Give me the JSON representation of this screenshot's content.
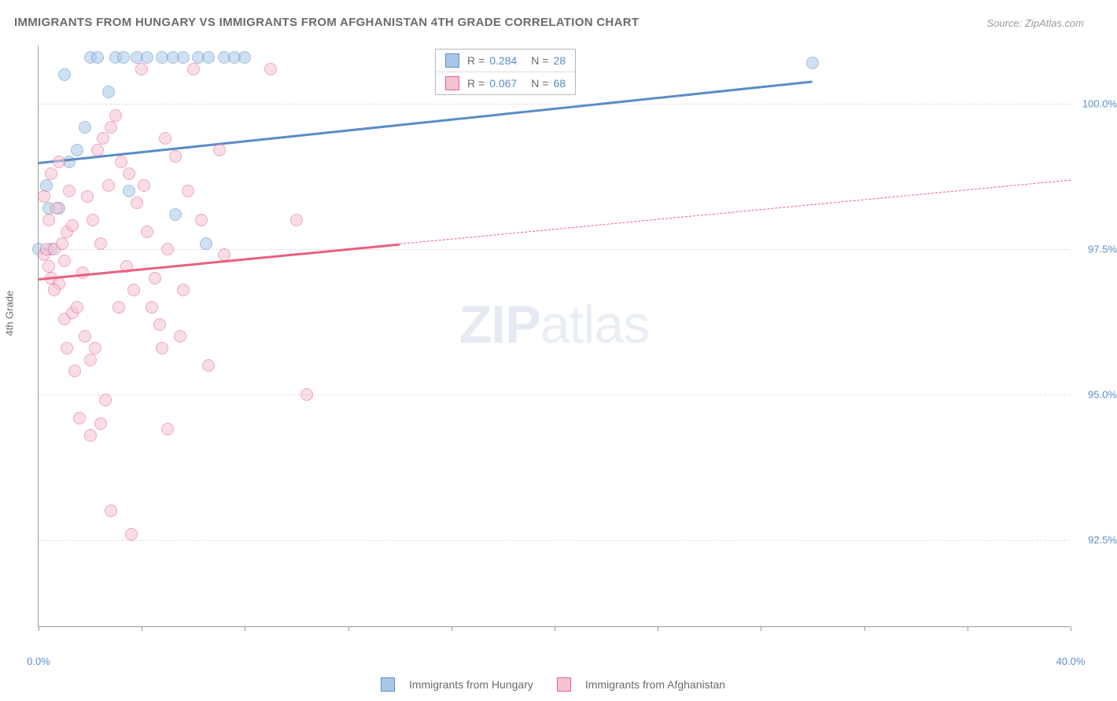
{
  "title": "IMMIGRANTS FROM HUNGARY VS IMMIGRANTS FROM AFGHANISTAN 4TH GRADE CORRELATION CHART",
  "source": "Source: ZipAtlas.com",
  "y_axis_label": "4th Grade",
  "watermark_zip": "ZIP",
  "watermark_atlas": "atlas",
  "chart": {
    "type": "scatter",
    "xlim": [
      0,
      40
    ],
    "ylim": [
      91.0,
      101.0
    ],
    "y_ticks": [
      92.5,
      95.0,
      97.5,
      100.0
    ],
    "y_tick_labels": [
      "92.5%",
      "95.0%",
      "97.5%",
      "100.0%"
    ],
    "x_ticks": [
      0,
      4,
      8,
      12,
      16,
      20,
      24,
      28,
      32,
      36,
      40
    ],
    "x_tick_labels": {
      "0": "0.0%",
      "40": "40.0%"
    },
    "background_color": "#ffffff",
    "grid_color": "#dddddd",
    "point_radius": 8,
    "point_opacity": 0.55,
    "series": [
      {
        "name": "Immigrants from Hungary",
        "color_fill": "#a9c8e8",
        "color_stroke": "#5b8cc8",
        "trend": {
          "x0": 0,
          "y0": 99.0,
          "x1": 30,
          "y1": 100.4,
          "dash": false,
          "width": 3
        },
        "R": "0.284",
        "N": "28",
        "points": [
          [
            0.0,
            97.5
          ],
          [
            0.5,
            97.5
          ],
          [
            0.4,
            98.2
          ],
          [
            0.8,
            98.2
          ],
          [
            0.3,
            98.6
          ],
          [
            1.2,
            99.0
          ],
          [
            1.5,
            99.2
          ],
          [
            1.8,
            99.6
          ],
          [
            1.0,
            100.5
          ],
          [
            2.0,
            100.8
          ],
          [
            2.3,
            100.8
          ],
          [
            2.7,
            100.2
          ],
          [
            3.0,
            100.8
          ],
          [
            3.3,
            100.8
          ],
          [
            3.5,
            98.5
          ],
          [
            3.8,
            100.8
          ],
          [
            4.2,
            100.8
          ],
          [
            4.8,
            100.8
          ],
          [
            5.2,
            100.8
          ],
          [
            5.3,
            98.1
          ],
          [
            5.6,
            100.8
          ],
          [
            6.2,
            100.8
          ],
          [
            6.6,
            100.8
          ],
          [
            7.2,
            100.8
          ],
          [
            7.6,
            100.8
          ],
          [
            8.0,
            100.8
          ],
          [
            6.5,
            97.6
          ],
          [
            30.0,
            100.7
          ]
        ]
      },
      {
        "name": "Immigrants from Afghanistan",
        "color_fill": "#f4c3d4",
        "color_stroke": "#e9607f",
        "trend_solid": {
          "x0": 0,
          "y0": 97.0,
          "x1": 14,
          "y1": 97.6,
          "dash": false,
          "width": 3
        },
        "trend_dash": {
          "x0": 14,
          "y0": 97.6,
          "x1": 40,
          "y1": 98.7,
          "dash": true,
          "width": 1.5
        },
        "R": "0.067",
        "N": "68",
        "points": [
          [
            0.2,
            97.4
          ],
          [
            0.4,
            97.2
          ],
          [
            0.3,
            97.5
          ],
          [
            0.6,
            97.5
          ],
          [
            0.5,
            97.0
          ],
          [
            0.8,
            96.9
          ],
          [
            1.0,
            97.3
          ],
          [
            0.4,
            98.0
          ],
          [
            0.7,
            98.2
          ],
          [
            1.2,
            98.5
          ],
          [
            1.0,
            96.3
          ],
          [
            1.3,
            96.4
          ],
          [
            1.5,
            96.5
          ],
          [
            1.1,
            95.8
          ],
          [
            1.4,
            95.4
          ],
          [
            1.8,
            96.0
          ],
          [
            2.0,
            95.6
          ],
          [
            2.2,
            95.8
          ],
          [
            1.6,
            94.6
          ],
          [
            2.4,
            94.5
          ],
          [
            2.6,
            94.9
          ],
          [
            2.0,
            94.3
          ],
          [
            2.8,
            93.0
          ],
          [
            3.6,
            92.6
          ],
          [
            2.3,
            99.2
          ],
          [
            2.5,
            99.4
          ],
          [
            2.8,
            99.6
          ],
          [
            3.0,
            99.8
          ],
          [
            3.2,
            99.0
          ],
          [
            3.5,
            98.8
          ],
          [
            3.8,
            98.3
          ],
          [
            4.0,
            100.6
          ],
          [
            4.2,
            97.8
          ],
          [
            4.5,
            97.0
          ],
          [
            4.7,
            96.2
          ],
          [
            4.8,
            95.8
          ],
          [
            5.0,
            97.5
          ],
          [
            5.0,
            94.4
          ],
          [
            5.3,
            99.1
          ],
          [
            5.5,
            96.0
          ],
          [
            5.8,
            98.5
          ],
          [
            6.0,
            100.6
          ],
          [
            6.3,
            98.0
          ],
          [
            6.6,
            95.5
          ],
          [
            7.0,
            99.2
          ],
          [
            7.2,
            97.4
          ],
          [
            9.0,
            100.6
          ],
          [
            10.0,
            98.0
          ],
          [
            10.4,
            95.0
          ],
          [
            0.9,
            97.6
          ],
          [
            1.1,
            97.8
          ],
          [
            0.6,
            96.8
          ],
          [
            1.3,
            97.9
          ],
          [
            1.7,
            97.1
          ],
          [
            1.9,
            98.4
          ],
          [
            2.1,
            98.0
          ],
          [
            2.4,
            97.6
          ],
          [
            2.7,
            98.6
          ],
          [
            3.1,
            96.5
          ],
          [
            3.4,
            97.2
          ],
          [
            3.7,
            96.8
          ],
          [
            4.1,
            98.6
          ],
          [
            4.4,
            96.5
          ],
          [
            4.9,
            99.4
          ],
          [
            5.6,
            96.8
          ],
          [
            0.2,
            98.4
          ],
          [
            0.5,
            98.8
          ],
          [
            0.8,
            99.0
          ]
        ]
      }
    ]
  },
  "legend_bottom": [
    {
      "label": "Immigrants from Hungary",
      "fill": "#a9c8e8",
      "stroke": "#5b8cc8"
    },
    {
      "label": "Immigrants from Afghanistan",
      "fill": "#f4c3d4",
      "stroke": "#e9607f"
    }
  ]
}
